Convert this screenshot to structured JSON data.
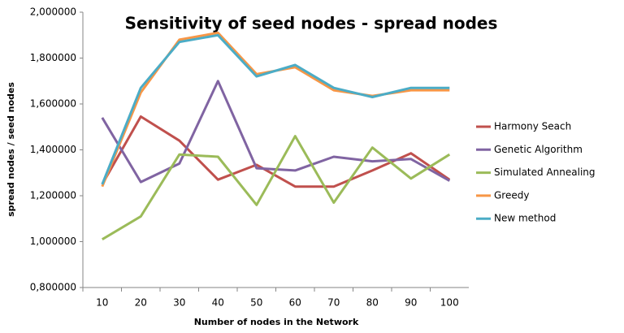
{
  "chart_data": {
    "type": "line",
    "title": "Sensitivity of seed nodes - spread nodes",
    "x_label": "Number of nodes in the Network",
    "y_label": "spread nodes / seed nodes",
    "categories": [
      "10",
      "20",
      "30",
      "40",
      "50",
      "60",
      "70",
      "80",
      "90",
      "100"
    ],
    "series": [
      {
        "name": "Harmony Seach",
        "color": "#c0504d",
        "values": [
          1.25,
          1.545,
          1.44,
          1.27,
          1.335,
          1.24,
          1.24,
          1.31,
          1.385,
          1.27
        ]
      },
      {
        "name": "Genetic Algorithm",
        "color": "#8064a2",
        "values": [
          1.54,
          1.26,
          1.34,
          1.7,
          1.32,
          1.31,
          1.37,
          1.35,
          1.36,
          1.265
        ]
      },
      {
        "name": "Simulated Annealing",
        "color": "#9bbb59",
        "values": [
          1.01,
          1.11,
          1.38,
          1.37,
          1.16,
          1.46,
          1.17,
          1.41,
          1.275,
          1.38
        ]
      },
      {
        "name": "Greedy",
        "color": "#f79646",
        "values": [
          1.24,
          1.65,
          1.88,
          1.91,
          1.73,
          1.76,
          1.66,
          1.635,
          1.66,
          1.66
        ]
      },
      {
        "name": "New method",
        "color": "#4bacc6",
        "values": [
          1.25,
          1.67,
          1.87,
          1.9,
          1.72,
          1.77,
          1.67,
          1.63,
          1.67,
          1.67
        ]
      }
    ],
    "ylim": [
      0.8,
      2.0
    ],
    "yticks": [
      {
        "value": 0.8,
        "label": "0,800000"
      },
      {
        "value": 1.0,
        "label": "1,000000"
      },
      {
        "value": 1.2,
        "label": "1,200000"
      },
      {
        "value": 1.4,
        "label": "1,400000"
      },
      {
        "value": 1.6,
        "label": "1,600000"
      },
      {
        "value": 1.8,
        "label": "1,800000"
      },
      {
        "value": 2.0,
        "label": "2,000000"
      }
    ],
    "legend": "right"
  }
}
